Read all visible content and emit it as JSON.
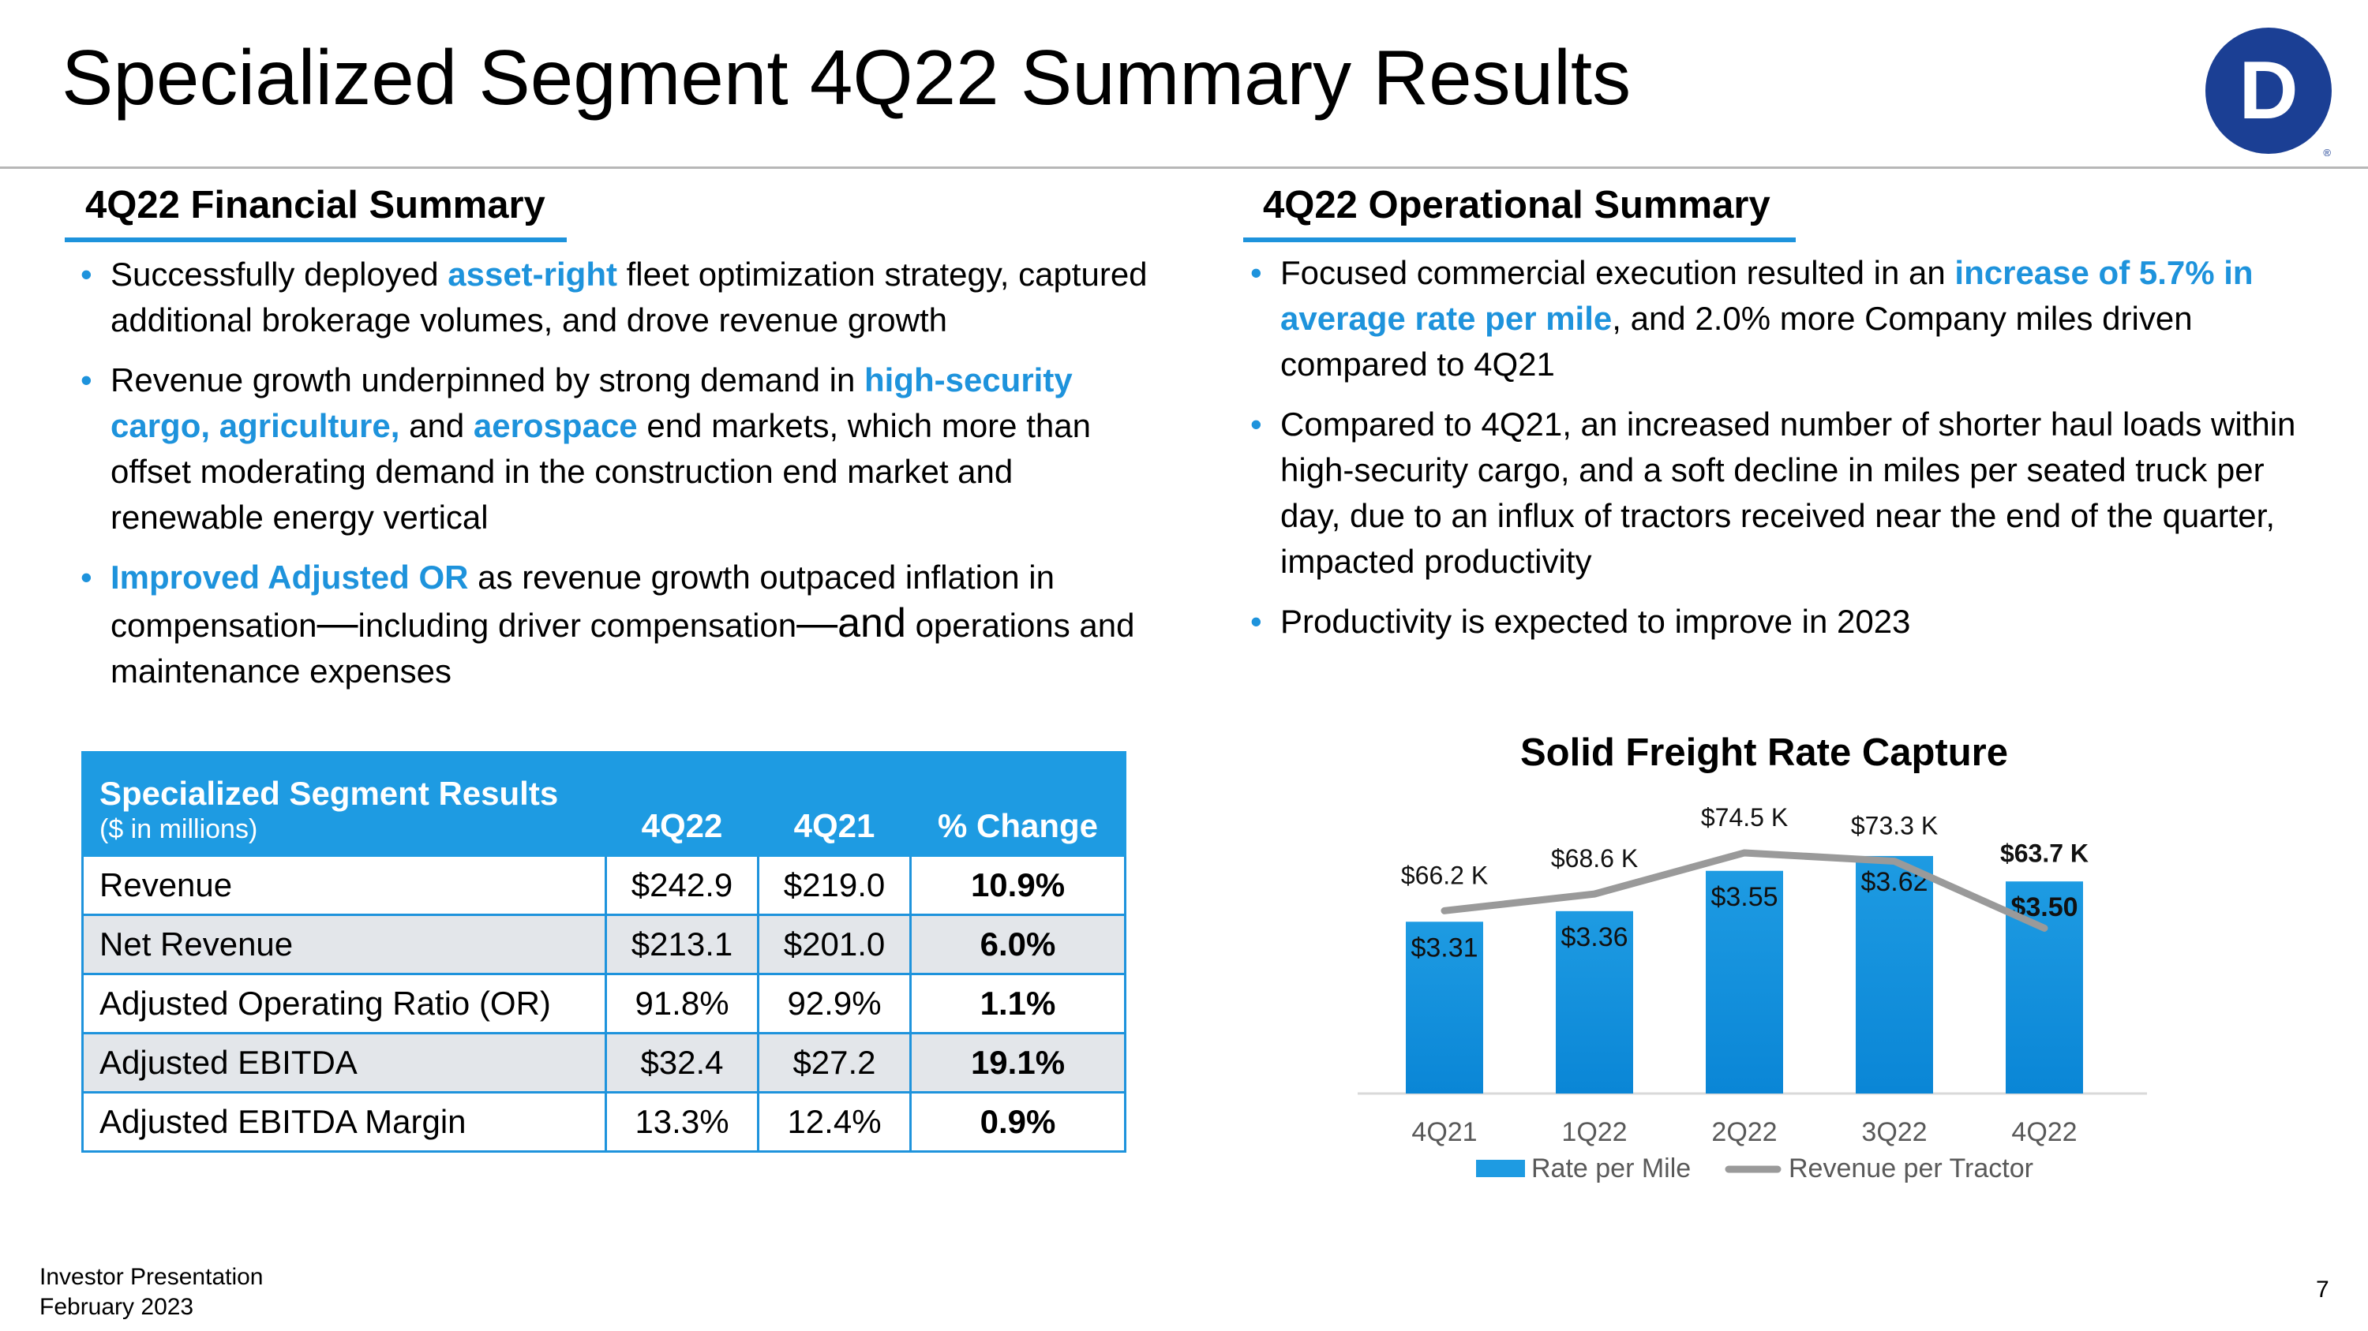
{
  "page": {
    "title": "Specialized Segment 4Q22 Summary Results",
    "logo_letter": "D",
    "logo_mark": "®",
    "logo_color": "#1b3f94"
  },
  "financial": {
    "heading": "4Q22 Financial Summary",
    "b1": {
      "t1": "Successfully deployed ",
      "h1": "asset-right",
      "t2": " fleet optimization strategy, captured additional brokerage volumes, and drove revenue growth"
    },
    "b2": {
      "t1": "Revenue growth underpinned by strong demand in ",
      "h1": "high-security cargo, agriculture,",
      "t2": " and ",
      "h2": "aerospace",
      "t3": " end markets, which more than offset moderating demand in the construction end market and renewable energy vertical"
    },
    "b3": {
      "h1": "Improved Adjusted OR",
      "t1": " as revenue growth outpaced inflation in compensation",
      "d1": "—",
      "t2": "including driver compensation",
      "d2": "—and",
      "t3": " operations and maintenance expenses"
    }
  },
  "operational": {
    "heading": "4Q22 Operational Summary",
    "b1": {
      "t1": "Focused commercial execution resulted in an ",
      "h1": "increase of 5.7% in average rate per mile",
      "t2": ", and 2.0% more Company miles driven compared to 4Q21"
    },
    "b2": "Compared to 4Q21, an increased number of shorter haul loads within high-security cargo, and a soft decline in miles per seated truck per day, due to an influx of tractors received near the end of the quarter, impacted productivity",
    "b3": "Productivity is expected to improve in 2023"
  },
  "table": {
    "header_title": "Specialized Segment Results",
    "header_sub": "($ in millions)",
    "columns": [
      "4Q22",
      "4Q21",
      "% Change"
    ],
    "rows": [
      {
        "label": "Revenue",
        "q4_22": "$242.9",
        "q4_21": "$219.0",
        "change": "10.9%"
      },
      {
        "label": "Net Revenue",
        "q4_22": "$213.1",
        "q4_21": "$201.0",
        "change": "6.0%"
      },
      {
        "label": "Adjusted Operating Ratio (OR)",
        "q4_22": "91.8%",
        "q4_21": "92.9%",
        "change": "1.1%"
      },
      {
        "label": "Adjusted EBITDA",
        "q4_22": "$32.4",
        "q4_21": "$27.2",
        "change": "19.1%"
      },
      {
        "label": "Adjusted EBITDA Margin",
        "q4_22": "13.3%",
        "q4_21": "12.4%",
        "change": "0.9%"
      }
    ]
  },
  "chart_data": {
    "type": "bar",
    "title": "Solid Freight Rate Capture",
    "categories": [
      "4Q21",
      "1Q22",
      "2Q22",
      "3Q22",
      "4Q22"
    ],
    "series": [
      {
        "name": "Rate per Mile",
        "type": "bar",
        "values": [
          3.31,
          3.36,
          3.55,
          3.62,
          3.5
        ],
        "labels": [
          "$3.31",
          "$3.36",
          "$3.55",
          "$3.62",
          "$3.50"
        ],
        "color": "#1e9be2"
      },
      {
        "name": "Revenue per Tractor",
        "type": "line",
        "values": [
          66.2,
          68.6,
          74.5,
          73.3,
          63.7
        ],
        "labels": [
          "$66.2 K",
          "$68.6 K",
          "$74.5 K",
          "$73.3 K",
          "$63.7 K"
        ],
        "color": "#9a9a9a"
      }
    ],
    "bar_axis_range": [
      2.5,
      3.75
    ],
    "line_axis_range": [
      40,
      78
    ],
    "bold_last": true,
    "legend": "bottom"
  },
  "footer": {
    "line1": "Investor Presentation",
    "line2": "February 2023",
    "page_number": "7"
  }
}
